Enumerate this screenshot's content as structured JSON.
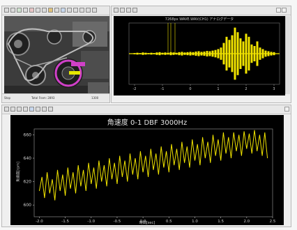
{
  "camera_window": {
    "status_left": "Stop",
    "status_mid": "Total Fram: 2893",
    "status_right": "1300"
  },
  "wave_window": {
    "title": "7268px WAVE.WAV(CH1) アナログデータ"
  },
  "speed_window": {
    "title": "角速度 0-1 DBF 3000Hz",
    "ylabel": "角速度[rpm]",
    "xlabel": "時間[sec]"
  },
  "chart_data": [
    {
      "type": "line",
      "title": "7268px WAVE.WAV(CH1) アナログデータ",
      "x": [
        -2.0,
        -1.9,
        -1.8,
        -1.7,
        -1.6,
        -1.5,
        -1.4,
        -1.3,
        -1.2,
        -1.1,
        -1.0,
        -0.9,
        -0.8,
        -0.7,
        -0.6,
        -0.5,
        -0.4,
        -0.3,
        -0.2,
        -0.1,
        0.0,
        0.1,
        0.2,
        0.3,
        0.4,
        0.5,
        0.6,
        0.7,
        0.8,
        0.9,
        1.0,
        1.1,
        1.2,
        1.3,
        1.4,
        1.5,
        1.6,
        1.7,
        1.8,
        1.9,
        2.0,
        2.1,
        2.2,
        2.3,
        2.4,
        2.5,
        2.6,
        2.7,
        2.8,
        2.9,
        3.0
      ],
      "values": [
        0.02,
        0.03,
        0.02,
        0.04,
        0.03,
        0.02,
        0.03,
        0.02,
        0.04,
        0.05,
        0.03,
        0.04,
        0.03,
        0.05,
        0.04,
        0.03,
        0.05,
        0.06,
        0.04,
        0.05,
        0.06,
        0.05,
        0.07,
        0.08,
        0.06,
        0.07,
        0.09,
        0.08,
        0.1,
        0.12,
        0.15,
        0.2,
        0.35,
        0.55,
        0.45,
        0.6,
        0.85,
        0.7,
        0.5,
        0.4,
        0.65,
        0.55,
        0.3,
        0.25,
        0.4,
        0.2,
        0.15,
        0.1,
        0.08,
        0.06,
        0.05
      ],
      "xlim": [
        -2.2,
        3.2
      ],
      "ylim": [
        -1,
        1
      ],
      "xticks": [
        "-2",
        "-1",
        "0",
        "1",
        "2",
        "3"
      ],
      "color": "#f2e500"
    },
    {
      "type": "line",
      "title": "角速度 0-1 DBF 3000Hz",
      "xlabel": "時間[sec]",
      "ylabel": "角速度[rpm]",
      "xlim": [
        -2.1,
        2.5
      ],
      "ylim": [
        590,
        665
      ],
      "yticks": [
        600,
        620,
        640,
        660
      ],
      "xticks": [
        "-2.0",
        "-1.5",
        "-1.0",
        "-0.5",
        "0.0",
        "0.5",
        "1.0",
        "1.5",
        "2.0",
        "2.5"
      ],
      "color": "#f2e500",
      "x": [
        -2.0,
        -1.95,
        -1.9,
        -1.85,
        -1.8,
        -1.75,
        -1.7,
        -1.65,
        -1.6,
        -1.55,
        -1.5,
        -1.45,
        -1.4,
        -1.35,
        -1.3,
        -1.25,
        -1.2,
        -1.15,
        -1.1,
        -1.05,
        -1.0,
        -0.95,
        -0.9,
        -0.85,
        -0.8,
        -0.75,
        -0.7,
        -0.65,
        -0.6,
        -0.55,
        -0.5,
        -0.45,
        -0.4,
        -0.35,
        -0.3,
        -0.25,
        -0.2,
        -0.15,
        -0.1,
        -0.05,
        0.0,
        0.05,
        0.1,
        0.15,
        0.2,
        0.25,
        0.3,
        0.35,
        0.4,
        0.45,
        0.5,
        0.55,
        0.6,
        0.65,
        0.7,
        0.75,
        0.8,
        0.85,
        0.9,
        0.95,
        1.0,
        1.05,
        1.1,
        1.15,
        1.2,
        1.25,
        1.3,
        1.35,
        1.4,
        1.45,
        1.5,
        1.55,
        1.6,
        1.65,
        1.7,
        1.75,
        1.8,
        1.85,
        1.9,
        1.95,
        2.0,
        2.05,
        2.1,
        2.15,
        2.2,
        2.25,
        2.3,
        2.35,
        2.4
      ],
      "values": [
        612,
        624,
        606,
        628,
        610,
        622,
        604,
        630,
        612,
        626,
        608,
        632,
        614,
        628,
        610,
        634,
        616,
        630,
        612,
        636,
        618,
        632,
        614,
        638,
        620,
        634,
        616,
        640,
        622,
        636,
        618,
        642,
        624,
        638,
        620,
        644,
        626,
        640,
        622,
        646,
        628,
        642,
        624,
        648,
        630,
        644,
        626,
        650,
        632,
        646,
        628,
        652,
        634,
        648,
        630,
        654,
        636,
        650,
        632,
        656,
        638,
        652,
        634,
        658,
        640,
        654,
        636,
        660,
        642,
        656,
        638,
        662,
        644,
        658,
        640,
        662,
        646,
        660,
        642,
        663,
        648,
        661,
        644,
        664,
        646,
        660,
        642,
        662,
        640
      ]
    }
  ]
}
